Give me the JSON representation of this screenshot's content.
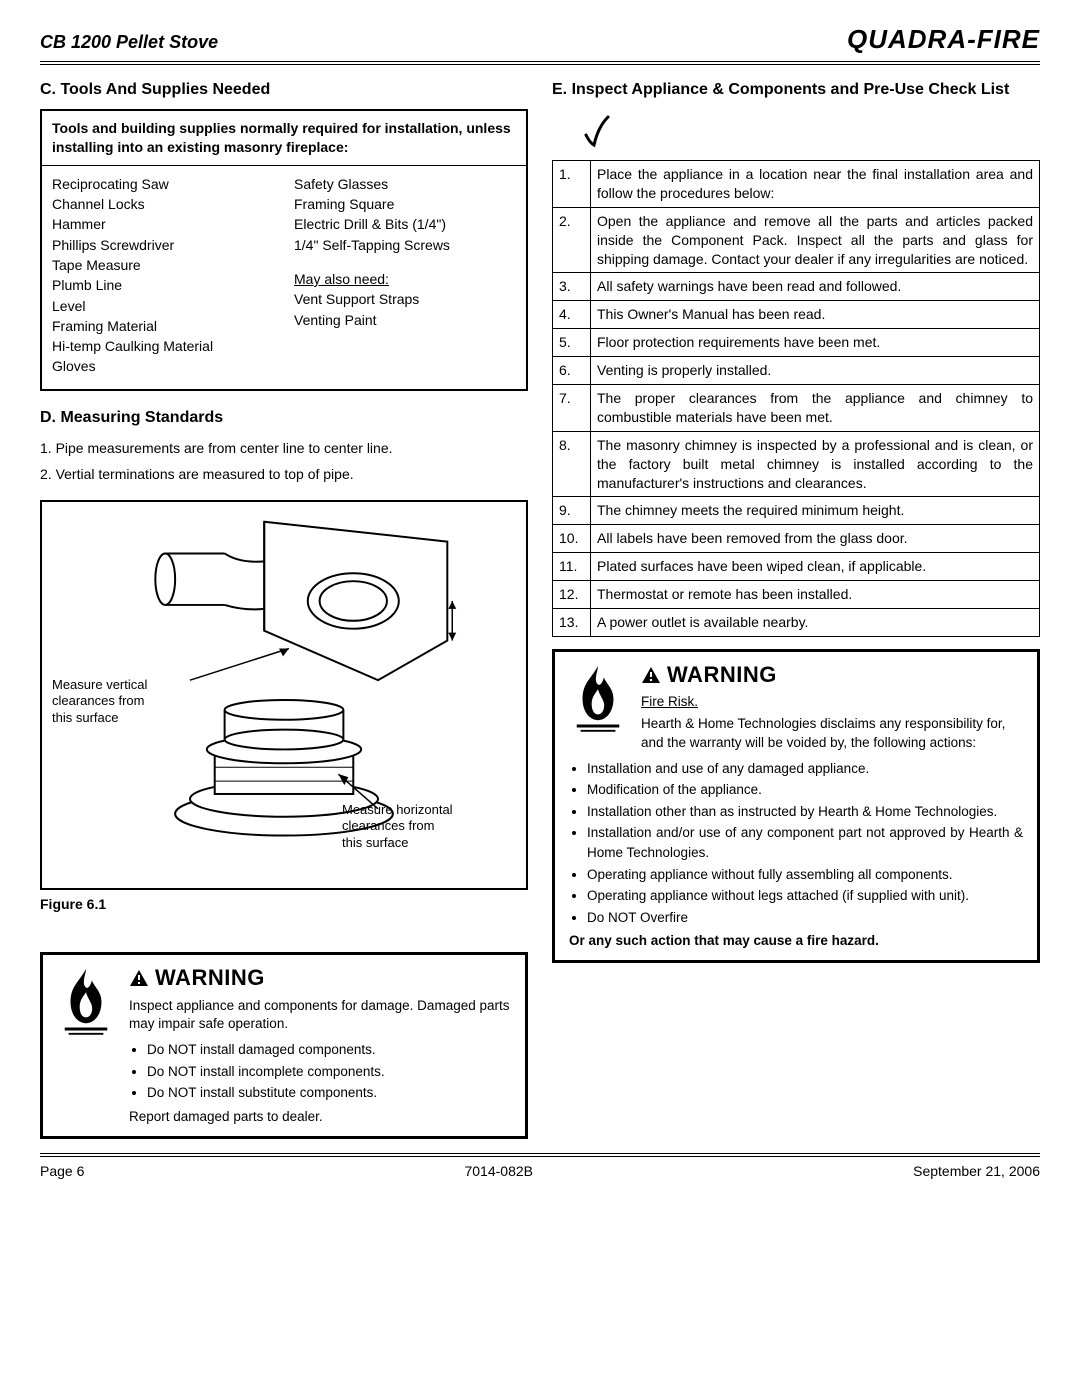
{
  "header": {
    "title": "CB 1200 Pellet Stove",
    "brand": "QUADRA-FIRE"
  },
  "sectionC": {
    "heading": "C.  Tools And Supplies Needed",
    "boxHeader": "Tools and building supplies normally required for installation, unless installing into an existing masonry fireplace:",
    "leftList": [
      "Reciprocating Saw",
      "Channel Locks",
      "Hammer",
      "Phillips Screwdriver",
      "Tape Measure",
      "Plumb Line",
      "Level",
      "Framing Material",
      "Hi-temp Caulking Material",
      "Gloves"
    ],
    "rightListA": [
      "Safety Glasses",
      "Framing Square",
      "Electric Drill & Bits (1/4\")",
      "1/4\" Self-Tapping Screws"
    ],
    "mayAlsoLabel": "May also need:",
    "rightListB": [
      "Vent Support Straps",
      "Venting Paint"
    ]
  },
  "sectionD": {
    "heading": "D.  Measuring Standards",
    "items": [
      "1.  Pipe measurements are from center line to center line.",
      "2.  Vertial terminations are measured to top of pipe."
    ],
    "figLabel1a": "Measure vertical",
    "figLabel1b": "clearances from",
    "figLabel1c": "this surface",
    "figLabel2a": "Measure horizontal",
    "figLabel2b": "clearances from",
    "figLabel2c": "this surface",
    "caption": "Figure 6.1"
  },
  "sectionE": {
    "heading": "E. Inspect Appliance & Components and Pre-Use Check List",
    "rows": [
      {
        "n": "1.",
        "t": "Place the appliance in a location near the final installation area and follow the procedures below:"
      },
      {
        "n": "2.",
        "t": "Open the appliance and remove all the parts and articles packed inside the Component Pack.  Inspect all the parts and glass for shipping damage.  Contact your dealer if any irregularities are noticed."
      },
      {
        "n": "3.",
        "t": "All safety warnings have been read and followed."
      },
      {
        "n": "4.",
        "t": "This Owner's Manual has been read."
      },
      {
        "n": "5.",
        "t": "Floor protection requirements have been met."
      },
      {
        "n": "6.",
        "t": "Venting is properly installed."
      },
      {
        "n": "7.",
        "t": "The proper clearances from the appliance and chimney to combustible materials have been met."
      },
      {
        "n": "8.",
        "t": "The masonry chimney is inspected by a professional and is clean, or the factory built metal chimney is installed according to the manufacturer's instructions and clearances."
      },
      {
        "n": "9.",
        "t": "The chimney meets the required minimum height."
      },
      {
        "n": "10.",
        "t": "All labels have been removed from the glass door."
      },
      {
        "n": "11.",
        "t": "Plated surfaces have been wiped clean, if applicable."
      },
      {
        "n": "12.",
        "t": "Thermostat or remote has been installed."
      },
      {
        "n": "13.",
        "t": "A power outlet is available nearby."
      }
    ]
  },
  "warningLeft": {
    "title": "WARNING",
    "intro": "Inspect appliance and components for damage. Damaged parts may impair safe operation.",
    "bullets": [
      "Do NOT install damaged components.",
      "Do NOT install incomplete components.",
      "Do NOT install substitute components."
    ],
    "foot": "Report damaged parts to dealer."
  },
  "warningRight": {
    "title": "WARNING",
    "sub": "Fire Risk.",
    "intro": "Hearth & Home Technologies disclaims any responsibility for, and the warranty will be voided by, the following actions:",
    "bullets": [
      "Installation and use of any damaged appliance.",
      "Modification of the appliance.",
      "Installation other than as instructed by Hearth & Home Technologies.",
      "Installation and/or use of any component part not approved by Hearth & Home Technologies.",
      "Operating appliance without fully assembling all components.",
      "Operating appliance without legs attached (if supplied with unit).",
      "Do NOT Overfire"
    ],
    "foot": "Or any such action that may cause a fire hazard."
  },
  "footer": {
    "page": "Page  6",
    "doc": "7014-082B",
    "date": "September 21, 2006"
  }
}
